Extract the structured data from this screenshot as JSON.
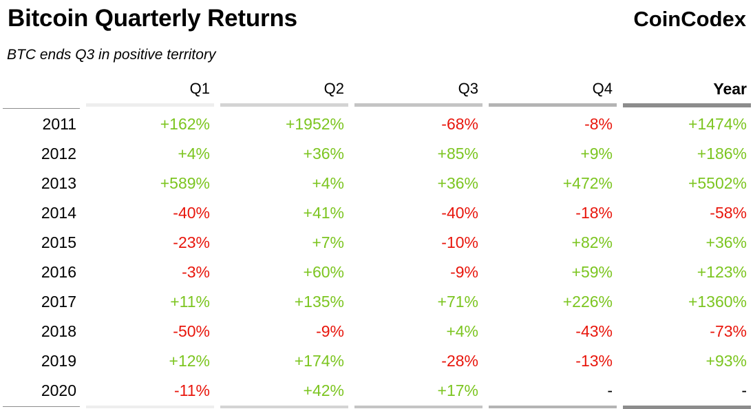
{
  "header": {
    "title": "Bitcoin Quarterly Returns",
    "brand": "CoinCodex",
    "subtitle": "BTC ends Q3 in positive territory"
  },
  "colors": {
    "positive": "#7cc520",
    "negative": "#e8160c",
    "neutral": "#000000",
    "q1_bar": "#eeeeee",
    "q2_bar": "#d4d4d4",
    "q3_bar": "#c4c4c4",
    "q4_bar": "#b4b4b4",
    "year_bar": "#8c8c8c"
  },
  "chart_data": {
    "type": "table",
    "title": "Bitcoin Quarterly Returns",
    "subtitle": "BTC ends Q3 in positive territory",
    "columns": [
      "Q1",
      "Q2",
      "Q3",
      "Q4",
      "Year"
    ],
    "rows": [
      {
        "label": "2011",
        "cells": [
          "+162%",
          "+1952%",
          "-68%",
          "-8%",
          "+1474%"
        ]
      },
      {
        "label": "2012",
        "cells": [
          "+4%",
          "+36%",
          "+85%",
          "+9%",
          "+186%"
        ]
      },
      {
        "label": "2013",
        "cells": [
          "+589%",
          "+4%",
          "+36%",
          "+472%",
          "+5502%"
        ]
      },
      {
        "label": "2014",
        "cells": [
          "-40%",
          "+41%",
          "-40%",
          "-18%",
          "-58%"
        ]
      },
      {
        "label": "2015",
        "cells": [
          "-23%",
          "+7%",
          "-10%",
          "+82%",
          "+36%"
        ]
      },
      {
        "label": "2016",
        "cells": [
          "-3%",
          "+60%",
          "-9%",
          "+59%",
          "+123%"
        ]
      },
      {
        "label": "2017",
        "cells": [
          "+11%",
          "+135%",
          "+71%",
          "+226%",
          "+1360%"
        ]
      },
      {
        "label": "2018",
        "cells": [
          "-50%",
          "-9%",
          "+4%",
          "-43%",
          "-73%"
        ]
      },
      {
        "label": "2019",
        "cells": [
          "+12%",
          "+174%",
          "-28%",
          "-13%",
          "+93%"
        ]
      },
      {
        "label": "2020",
        "cells": [
          "-11%",
          "+42%",
          "+17%",
          "-",
          "-"
        ]
      }
    ]
  }
}
